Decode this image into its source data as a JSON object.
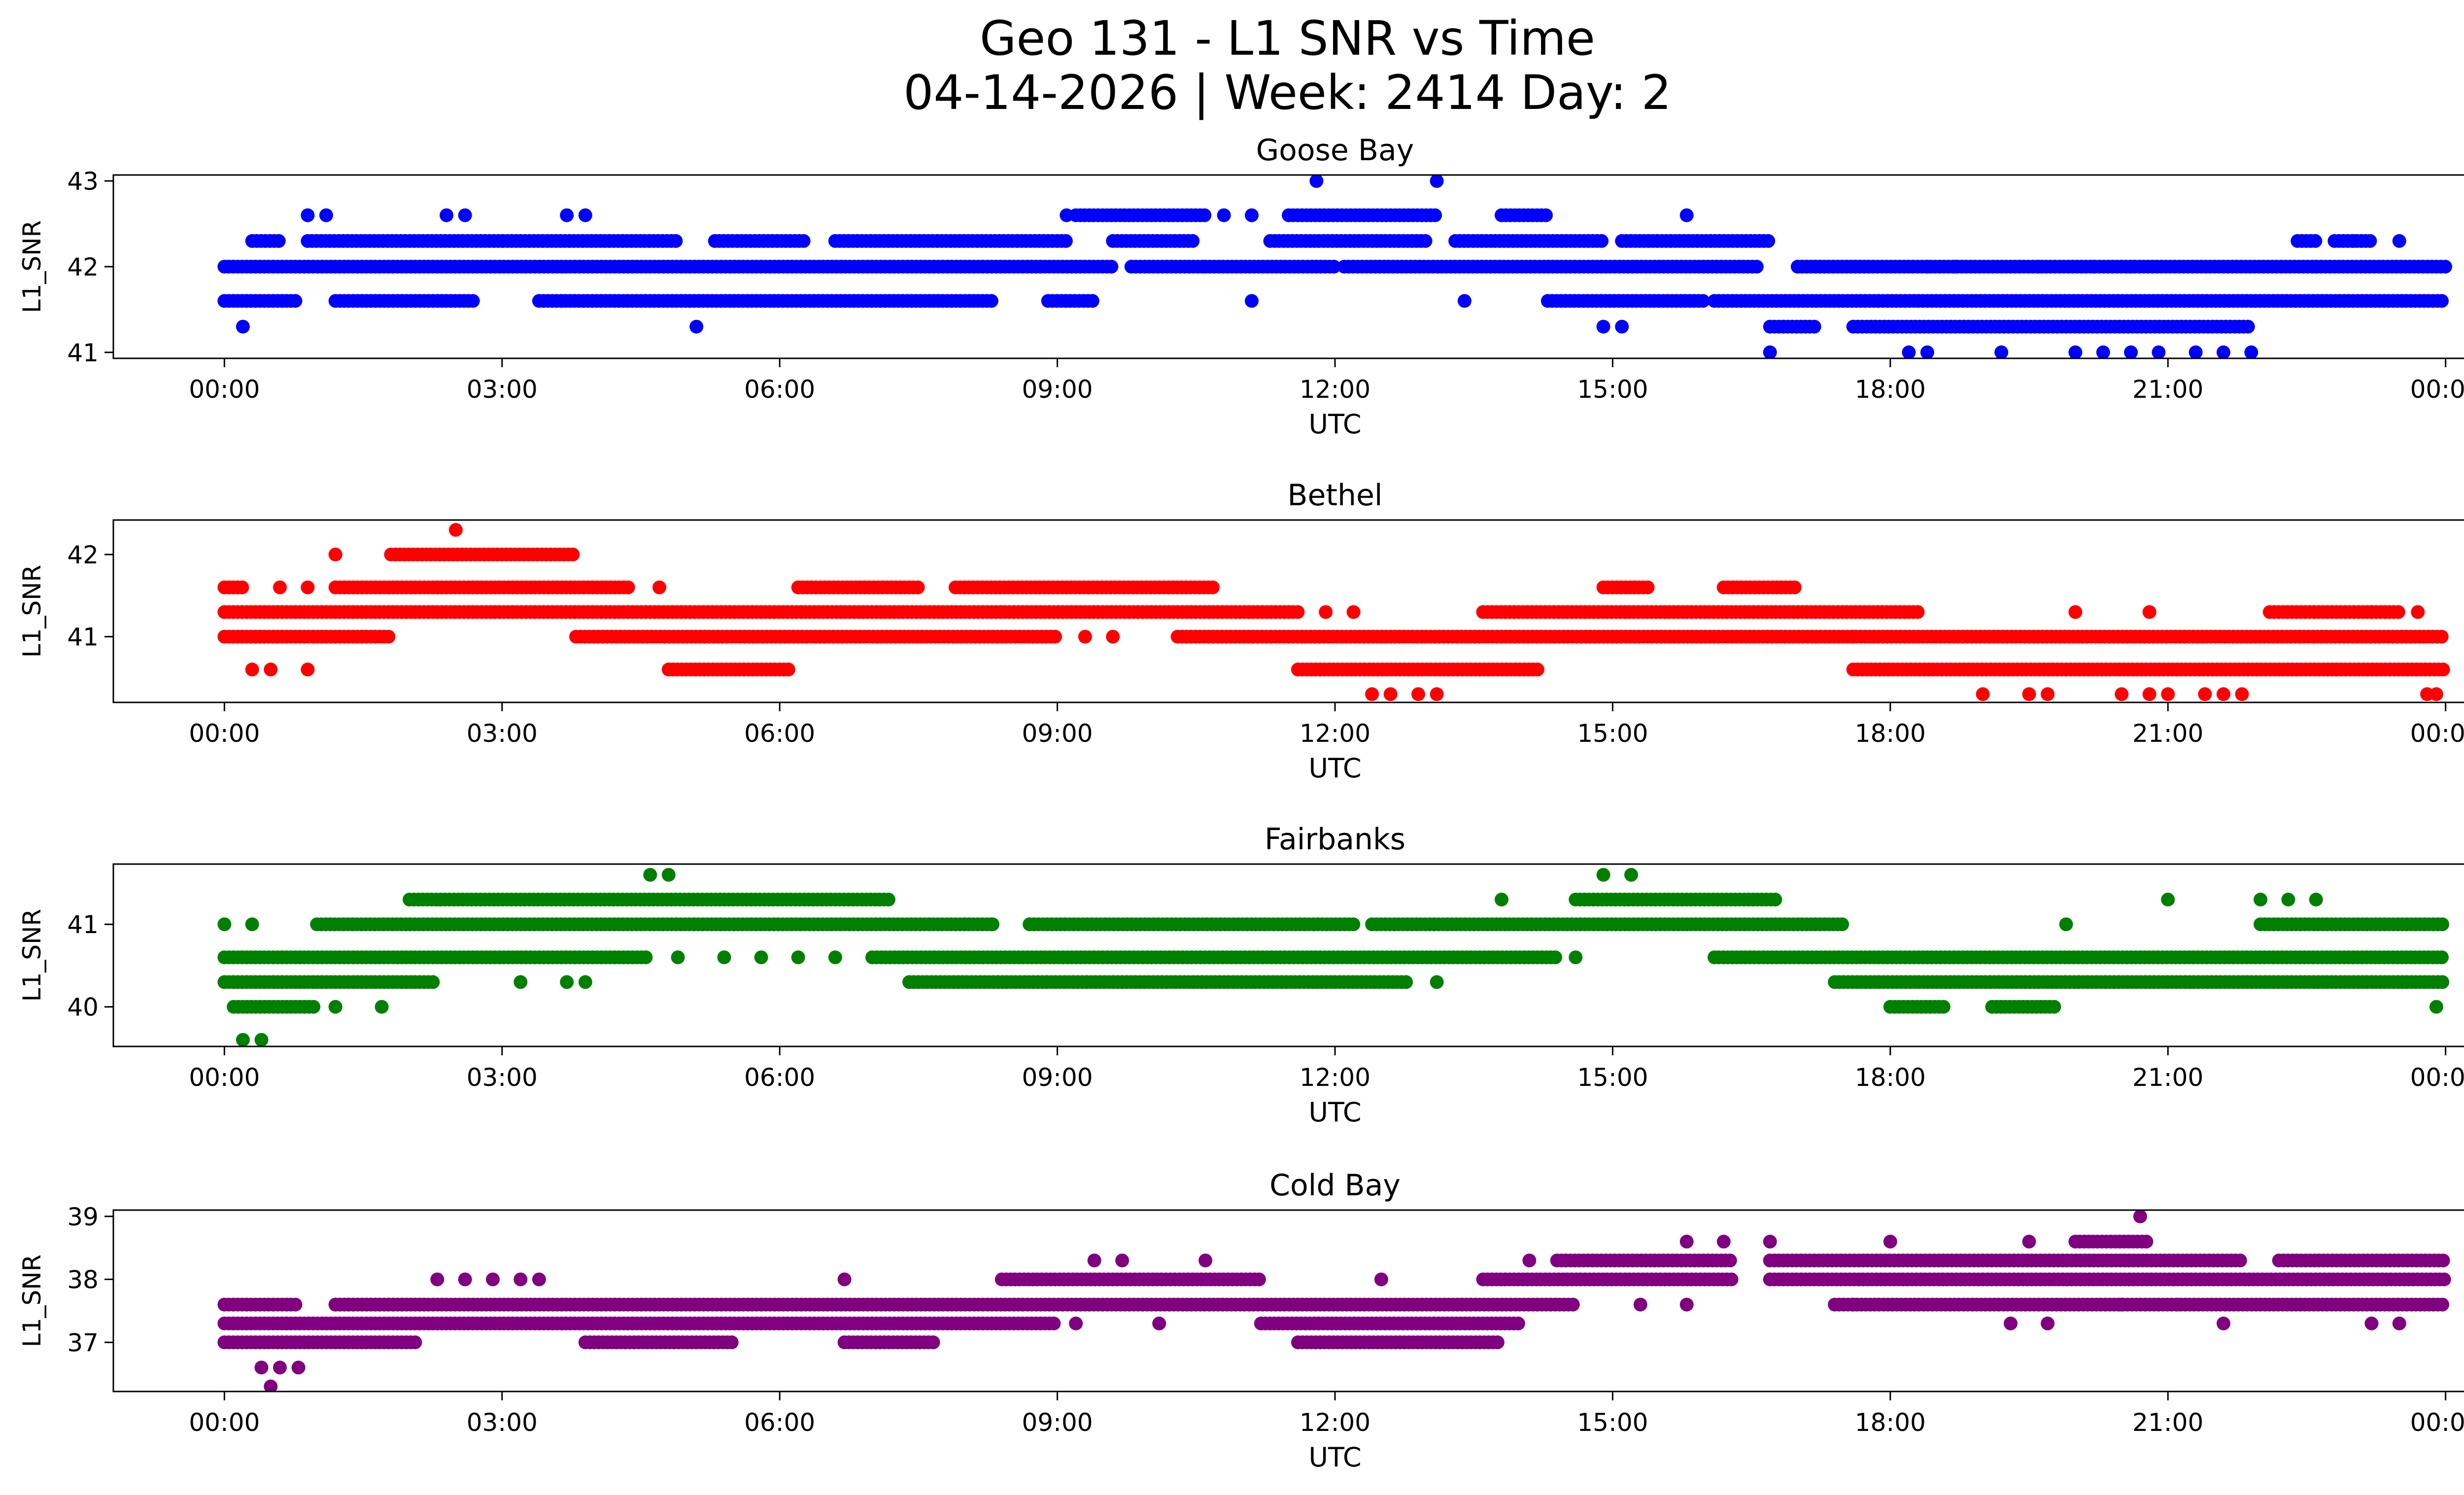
{
  "figure": {
    "title_line1": "Geo 131 - L1 SNR vs Time",
    "title_line2": "04-14-2026 | Week: 2414 Day: 2"
  },
  "chart_data": [
    {
      "type": "scatter",
      "title": "Goose Bay",
      "xlabel": "UTC",
      "ylabel": "L1_SNR",
      "color": "#0000ff",
      "xlim_hours": [
        -1.2,
        25.2
      ],
      "ylim": [
        40.93,
        43.07
      ],
      "yticks": [
        41,
        42,
        43
      ],
      "ytick_labels": [
        "41",
        "42",
        "43"
      ],
      "xticks_hours": [
        0,
        3,
        6,
        9,
        12,
        15,
        18,
        21,
        24
      ],
      "xtick_labels": [
        "00:00",
        "03:00",
        "06:00",
        "09:00",
        "12:00",
        "15:00",
        "18:00",
        "21:00",
        "00:00"
      ],
      "bands": [
        {
          "y": 42.0,
          "segments": [
            [
              0.0,
              9.6
            ],
            [
              9.8,
              10.6
            ],
            [
              10.6,
              12.0
            ],
            [
              12.1,
              16.6
            ],
            [
              17.0,
              17.8
            ],
            [
              17.0,
              24.0
            ]
          ]
        },
        {
          "y": 41.6,
          "segments": [
            [
              0.0,
              0.8
            ],
            [
              1.2,
              2.7
            ],
            [
              3.4,
              8.3
            ],
            [
              8.9,
              9.4
            ],
            [
              14.3,
              16.0
            ],
            [
              16.1,
              24.0
            ]
          ]
        },
        {
          "y": 42.3,
          "segments": [
            [
              0.3,
              0.6
            ],
            [
              0.9,
              4.9
            ],
            [
              5.3,
              6.3
            ],
            [
              6.6,
              9.1
            ],
            [
              9.6,
              10.5
            ],
            [
              11.3,
              13.0
            ],
            [
              13.3,
              14.9
            ],
            [
              15.1,
              16.7
            ],
            [
              22.4,
              22.6
            ],
            [
              22.8,
              23.2
            ]
          ]
        },
        {
          "y": 42.6,
          "segments": [
            [
              9.2,
              10.6
            ],
            [
              11.5,
              13.1
            ],
            [
              13.8,
              14.3
            ]
          ]
        },
        {
          "y": 41.3,
          "segments": [
            [
              16.7,
              17.2
            ],
            [
              17.6,
              21.9
            ]
          ]
        }
      ],
      "points": [
        [
          0.2,
          41.3
        ],
        [
          0.9,
          42.6
        ],
        [
          1.1,
          42.6
        ],
        [
          2.4,
          42.6
        ],
        [
          2.6,
          42.6
        ],
        [
          3.7,
          42.6
        ],
        [
          3.9,
          42.6
        ],
        [
          5.1,
          41.3
        ],
        [
          11.8,
          43.0
        ],
        [
          13.1,
          43.0
        ],
        [
          15.8,
          42.6
        ],
        [
          11.1,
          41.6
        ],
        [
          13.4,
          41.6
        ],
        [
          14.9,
          41.3
        ],
        [
          15.1,
          41.3
        ],
        [
          9.1,
          42.6
        ],
        [
          10.8,
          42.6
        ],
        [
          11.1,
          42.6
        ],
        [
          16.7,
          41.0
        ],
        [
          18.2,
          41.0
        ],
        [
          18.4,
          41.0
        ],
        [
          19.2,
          41.0
        ],
        [
          20.0,
          41.0
        ],
        [
          20.3,
          41.0
        ],
        [
          20.6,
          41.0
        ],
        [
          20.9,
          41.0
        ],
        [
          21.3,
          41.0
        ],
        [
          21.6,
          41.0
        ],
        [
          21.9,
          41.0
        ],
        [
          18.4,
          42.0
        ],
        [
          18.7,
          42.0
        ],
        [
          19.6,
          42.0
        ],
        [
          20.2,
          42.0
        ],
        [
          20.6,
          42.0
        ],
        [
          22.6,
          42.0
        ],
        [
          23.0,
          42.3
        ],
        [
          23.5,
          42.3
        ]
      ]
    },
    {
      "type": "scatter",
      "title": "Bethel",
      "xlabel": "UTC",
      "ylabel": "L1_SNR",
      "color": "#ff0000",
      "xlim_hours": [
        -1.2,
        25.2
      ],
      "ylim": [
        40.2,
        42.42
      ],
      "yticks": [
        41,
        42
      ],
      "ytick_labels": [
        "41",
        "42"
      ],
      "xticks_hours": [
        0,
        3,
        6,
        9,
        12,
        15,
        18,
        21,
        24
      ],
      "xtick_labels": [
        "00:00",
        "03:00",
        "06:00",
        "09:00",
        "12:00",
        "15:00",
        "18:00",
        "21:00",
        "00:00"
      ],
      "bands": [
        {
          "y": 41.3,
          "segments": [
            [
              0.0,
              11.6
            ],
            [
              13.6,
              18.3
            ],
            [
              22.1,
              23.5
            ]
          ]
        },
        {
          "y": 41.0,
          "segments": [
            [
              0.0,
              1.8
            ],
            [
              3.8,
              9.0
            ],
            [
              10.3,
              24.0
            ]
          ]
        },
        {
          "y": 41.6,
          "segments": [
            [
              0.0,
              0.2
            ],
            [
              1.2,
              4.4
            ],
            [
              6.2,
              7.5
            ],
            [
              7.9,
              10.7
            ],
            [
              14.9,
              15.4
            ],
            [
              16.2,
              17.0
            ]
          ]
        },
        {
          "y": 42.0,
          "segments": [
            [
              1.8,
              3.8
            ]
          ]
        },
        {
          "y": 40.6,
          "segments": [
            [
              4.8,
              6.1
            ],
            [
              11.6,
              14.2
            ],
            [
              17.6,
              24.0
            ]
          ]
        }
      ],
      "points": [
        [
          0.3,
          40.6
        ],
        [
          0.5,
          40.6
        ],
        [
          0.9,
          40.6
        ],
        [
          1.2,
          42.0
        ],
        [
          2.5,
          42.3
        ],
        [
          0.6,
          41.6
        ],
        [
          0.9,
          41.6
        ],
        [
          4.7,
          41.6
        ],
        [
          9.3,
          41.0
        ],
        [
          9.6,
          41.0
        ],
        [
          11.9,
          41.3
        ],
        [
          12.2,
          41.3
        ],
        [
          12.4,
          40.3
        ],
        [
          12.6,
          40.3
        ],
        [
          12.9,
          40.3
        ],
        [
          13.1,
          40.3
        ],
        [
          19.0,
          40.3
        ],
        [
          19.5,
          40.3
        ],
        [
          19.7,
          40.3
        ],
        [
          20.5,
          40.3
        ],
        [
          20.8,
          40.3
        ],
        [
          21.0,
          40.3
        ],
        [
          21.4,
          40.3
        ],
        [
          21.6,
          40.3
        ],
        [
          21.8,
          40.3
        ],
        [
          23.8,
          40.3
        ],
        [
          23.9,
          40.3
        ],
        [
          20.0,
          41.3
        ],
        [
          20.8,
          41.3
        ],
        [
          23.2,
          41.3
        ],
        [
          23.7,
          41.3
        ],
        [
          17.6,
          41.0
        ]
      ]
    },
    {
      "type": "scatter",
      "title": "Fairbanks",
      "xlabel": "UTC",
      "ylabel": "L1_SNR",
      "color": "#008000",
      "xlim_hours": [
        -1.2,
        25.2
      ],
      "ylim": [
        39.52,
        41.73
      ],
      "yticks": [
        40,
        41
      ],
      "ytick_labels": [
        "40",
        "41"
      ],
      "xticks_hours": [
        0,
        3,
        6,
        9,
        12,
        15,
        18,
        21,
        24
      ],
      "xtick_labels": [
        "00:00",
        "03:00",
        "06:00",
        "09:00",
        "12:00",
        "15:00",
        "18:00",
        "21:00",
        "00:00"
      ],
      "bands": [
        {
          "y": 40.6,
          "segments": [
            [
              0.0,
              4.6
            ],
            [
              7.0,
              14.4
            ],
            [
              16.1,
              24.0
            ]
          ]
        },
        {
          "y": 40.3,
          "segments": [
            [
              0.0,
              2.3
            ],
            [
              7.4,
              12.8
            ],
            [
              17.4,
              24.0
            ]
          ]
        },
        {
          "y": 41.0,
          "segments": [
            [
              1.0,
              8.3
            ],
            [
              8.7,
              12.2
            ],
            [
              12.4,
              17.5
            ],
            [
              22.0,
              24.0
            ]
          ]
        },
        {
          "y": 41.3,
          "segments": [
            [
              2.0,
              7.2
            ],
            [
              14.6,
              16.8
            ]
          ]
        },
        {
          "y": 40.0,
          "segments": [
            [
              0.1,
              1.0
            ],
            [
              18.0,
              18.6
            ],
            [
              19.1,
              19.8
            ]
          ]
        }
      ],
      "points": [
        [
          0.0,
          41.0
        ],
        [
          0.3,
          41.0
        ],
        [
          4.6,
          41.6
        ],
        [
          4.8,
          41.6
        ],
        [
          0.2,
          39.6
        ],
        [
          0.4,
          39.6
        ],
        [
          1.2,
          40.0
        ],
        [
          1.7,
          40.0
        ],
        [
          3.2,
          40.3
        ],
        [
          3.7,
          40.3
        ],
        [
          3.9,
          40.3
        ],
        [
          4.9,
          40.6
        ],
        [
          5.4,
          40.6
        ],
        [
          5.8,
          40.6
        ],
        [
          6.2,
          40.6
        ],
        [
          6.6,
          40.6
        ],
        [
          13.1,
          40.3
        ],
        [
          13.8,
          41.3
        ],
        [
          14.9,
          41.6
        ],
        [
          15.2,
          41.6
        ],
        [
          14.6,
          40.6
        ],
        [
          19.9,
          41.0
        ],
        [
          21.0,
          41.3
        ],
        [
          22.0,
          41.3
        ],
        [
          22.3,
          41.3
        ],
        [
          22.6,
          41.3
        ],
        [
          23.9,
          40.0
        ],
        [
          8.0,
          41.0
        ],
        [
          8.3,
          41.0
        ],
        [
          8.7,
          41.0
        ]
      ]
    },
    {
      "type": "scatter",
      "title": "Cold Bay",
      "xlabel": "UTC",
      "ylabel": "L1_SNR",
      "color": "#800080",
      "xlim_hours": [
        -1.2,
        25.2
      ],
      "ylim": [
        36.22,
        39.1
      ],
      "yticks": [
        37,
        38,
        39
      ],
      "ytick_labels": [
        "37",
        "38",
        "39"
      ],
      "xticks_hours": [
        0,
        3,
        6,
        9,
        12,
        15,
        18,
        21,
        24
      ],
      "xtick_labels": [
        "00:00",
        "03:00",
        "06:00",
        "09:00",
        "12:00",
        "15:00",
        "18:00",
        "21:00",
        "00:00"
      ],
      "bands": [
        {
          "y": 37.3,
          "segments": [
            [
              0.0,
              9.0
            ],
            [
              11.2,
              14.0
            ]
          ]
        },
        {
          "y": 37.0,
          "segments": [
            [
              0.0,
              2.1
            ],
            [
              3.9,
              5.5
            ],
            [
              6.7,
              7.7
            ],
            [
              11.6,
              13.8
            ]
          ]
        },
        {
          "y": 37.6,
          "segments": [
            [
              0.0,
              0.8
            ],
            [
              1.2,
              2.2
            ],
            [
              1.2,
              14.6
            ],
            [
              17.4,
              24.0
            ]
          ]
        },
        {
          "y": 38.0,
          "segments": [
            [
              8.4,
              11.2
            ],
            [
              13.6,
              16.3
            ],
            [
              16.7,
              24.0
            ]
          ]
        },
        {
          "y": 38.3,
          "segments": [
            [
              14.4,
              16.3
            ],
            [
              16.7,
              21.8
            ],
            [
              22.2,
              24.0
            ]
          ]
        },
        {
          "y": 38.6,
          "segments": [
            [
              20.0,
              20.8
            ]
          ]
        }
      ],
      "points": [
        [
          0.4,
          36.6
        ],
        [
          0.6,
          36.6
        ],
        [
          0.8,
          36.6
        ],
        [
          0.5,
          36.3
        ],
        [
          2.3,
          38.0
        ],
        [
          2.6,
          38.0
        ],
        [
          2.9,
          38.0
        ],
        [
          3.2,
          38.0
        ],
        [
          3.4,
          38.0
        ],
        [
          6.7,
          38.0
        ],
        [
          9.2,
          37.3
        ],
        [
          9.4,
          38.3
        ],
        [
          9.7,
          38.3
        ],
        [
          10.1,
          37.3
        ],
        [
          10.6,
          38.3
        ],
        [
          12.5,
          38.0
        ],
        [
          14.1,
          38.3
        ],
        [
          15.3,
          37.6
        ],
        [
          15.8,
          38.6
        ],
        [
          16.2,
          38.6
        ],
        [
          15.8,
          37.6
        ],
        [
          16.7,
          38.6
        ],
        [
          17.6,
          37.6
        ],
        [
          18.0,
          38.6
        ],
        [
          19.3,
          37.3
        ],
        [
          19.7,
          37.3
        ],
        [
          19.5,
          38.6
        ],
        [
          20.7,
          39.0
        ],
        [
          20.5,
          37.6
        ],
        [
          21.1,
          37.6
        ],
        [
          21.6,
          37.3
        ],
        [
          23.2,
          37.3
        ],
        [
          23.5,
          37.3
        ]
      ]
    }
  ]
}
